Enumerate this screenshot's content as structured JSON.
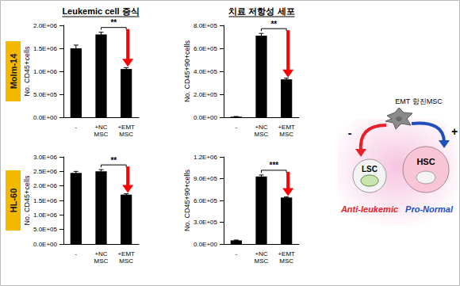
{
  "column_titles": [
    "Leukemic cell 증식",
    "치료 저항성 세포"
  ],
  "row_labels": [
    "Molm-14",
    "HL-60"
  ],
  "chart_data": [
    {
      "type": "bar",
      "categories": [
        "-",
        "+NC\nMSC",
        "+EMT\nMSC"
      ],
      "values": [
        1500000,
        1800000,
        1050000
      ],
      "errors": [
        70000,
        50000,
        30000
      ],
      "color": "#000000",
      "ylabel": "No. CD45+cells",
      "ylim": [
        0,
        2000000
      ],
      "yticks": [
        {
          "value": 0,
          "label": "0.0E+00"
        },
        {
          "value": 500000,
          "label": "5.0E+05"
        },
        {
          "value": 1000000,
          "label": "1.0E+06"
        },
        {
          "value": 1500000,
          "label": "1.5E+06"
        },
        {
          "value": 2000000,
          "label": "2.0E+06"
        }
      ],
      "grid": false,
      "significance": {
        "between": [
          1,
          2
        ],
        "label": "**"
      }
    },
    {
      "type": "bar",
      "categories": [
        "-",
        "+NC\nMSC",
        "+EMT\nMSC"
      ],
      "values": [
        5000,
        710000,
        330000
      ],
      "errors": [
        1000,
        20000,
        10000
      ],
      "color": "#000000",
      "ylabel": "No. CD45+90+cells",
      "ylim": [
        0,
        800000
      ],
      "yticks": [
        {
          "value": 0,
          "label": "0.0E+00"
        },
        {
          "value": 200000,
          "label": "2.0E+05"
        },
        {
          "value": 400000,
          "label": "4.0E+05"
        },
        {
          "value": 600000,
          "label": "6.0E+05"
        },
        {
          "value": 800000,
          "label": "8.0E+05"
        }
      ],
      "grid": false,
      "significance": {
        "between": [
          1,
          2
        ],
        "label": "**"
      }
    },
    {
      "type": "bar",
      "categories": [
        "-",
        "+NC\nMSC",
        "+EMT\nMSC"
      ],
      "values": [
        2450000,
        2500000,
        1700000
      ],
      "errors": [
        50000,
        60000,
        30000
      ],
      "color": "#000000",
      "ylabel": "No. CD45+cells",
      "ylim": [
        0,
        3000000
      ],
      "yticks": [
        {
          "value": 0,
          "label": "0.0E+00"
        },
        {
          "value": 500000,
          "label": "5.0E+05"
        },
        {
          "value": 1000000,
          "label": "1.0E+06"
        },
        {
          "value": 1500000,
          "label": "1.5E+06"
        },
        {
          "value": 2000000,
          "label": "2.0E+06"
        },
        {
          "value": 2500000,
          "label": "2.5E+06"
        },
        {
          "value": 3000000,
          "label": "3.0E+06"
        }
      ],
      "grid": false,
      "significance": {
        "between": [
          1,
          2
        ],
        "label": "**"
      }
    },
    {
      "type": "bar",
      "categories": [
        "-",
        "+NC\nMSC",
        "+EMT\nMSC"
      ],
      "values": [
        50000,
        930000,
        640000
      ],
      "errors": [
        5000,
        20000,
        10000
      ],
      "color": "#000000",
      "ylabel": "No. CD45+90+cells",
      "ylim": [
        0,
        1200000
      ],
      "yticks": [
        {
          "value": 0,
          "label": "0.0E+00"
        },
        {
          "value": 300000,
          "label": "3.0E+05"
        },
        {
          "value": 600000,
          "label": "6.0E+05"
        },
        {
          "value": 900000,
          "label": "9.0E+05"
        },
        {
          "value": 1200000,
          "label": "1.2E+06"
        }
      ],
      "grid": false,
      "significance": {
        "between": [
          1,
          2
        ],
        "label": "***"
      }
    }
  ],
  "diagram": {
    "cell_label": "EMT 항진MSC",
    "targets": [
      {
        "label": "LSC",
        "effect": "-",
        "role": "Anti-leukemic",
        "color": "#e8202a"
      },
      {
        "label": "HSC",
        "effect": "+",
        "role": "Pro-Normal",
        "color": "#1f4fbf"
      }
    ]
  }
}
